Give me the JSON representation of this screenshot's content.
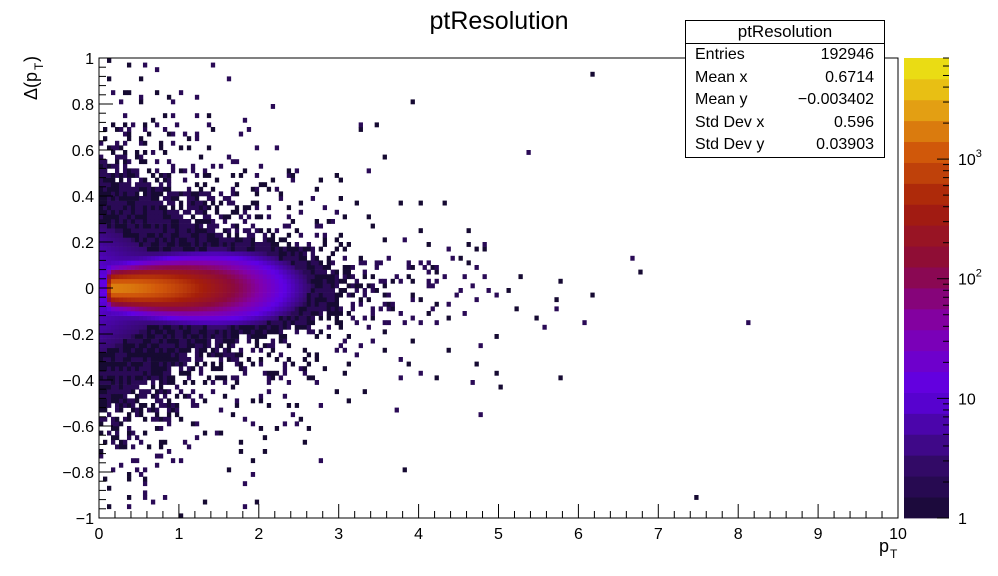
{
  "chart_data": {
    "type": "heatmap",
    "title": "ptResolution",
    "xlabel": "p_T",
    "ylabel": "Δ(p_T)",
    "xlim": [
      0,
      10
    ],
    "ylim": [
      -1,
      1
    ],
    "x_ticks": [
      "0",
      "1",
      "2",
      "3",
      "4",
      "5",
      "6",
      "7",
      "8",
      "9",
      "10"
    ],
    "y_ticks": [
      "−1",
      "−0.8",
      "−0.6",
      "−0.4",
      "−0.2",
      "0",
      "0.2",
      "0.4",
      "0.6",
      "0.8",
      "1"
    ],
    "z_scale": "log",
    "z_range": [
      1,
      7000
    ],
    "z_ticks": [
      "1",
      "10",
      "10^2",
      "10^3"
    ],
    "palette": "kBird-like (dark purple → violet → red → orange → yellow)",
    "description_core": "Dense band centered at Δ(pT)=0, brightest (yellow, ~10^3–10^4 counts) for pT≈0.1–0.8, fading to red/purple by pT≈3 and sparse single counts out to pT≈10",
    "stats": {
      "name": "ptResolution",
      "entries": "192946",
      "mean_x": "0.6714",
      "mean_y": "−0.003402",
      "std_dev_x": "0.596",
      "std_dev_y": "0.03903"
    }
  },
  "stats_labels": {
    "entries": "Entries",
    "mean_x": "Mean x",
    "mean_y": "Mean y",
    "std_dev_x": "Std Dev x",
    "std_dev_y": "Std Dev y"
  }
}
